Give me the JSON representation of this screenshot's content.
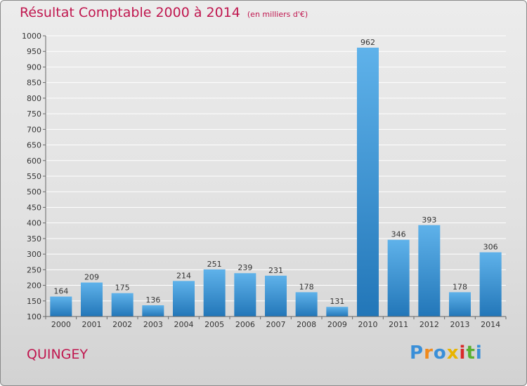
{
  "header": {
    "title": "Résultat Comptable 2000 à 2014",
    "unit_note": "(en milliers d'€)"
  },
  "location": "QUINGEY",
  "logo": {
    "text": "Proxiti",
    "letter_colors": [
      "#3a8fd8",
      "#f08a1c",
      "#3a8fd8",
      "#e8b400",
      "#d92a2a",
      "#59b031",
      "#3a8fd8"
    ]
  },
  "colors": {
    "title": "#c0174f",
    "bar_light": "#5fb2ea",
    "bar_dark": "#2276b8",
    "grid": "#ffffff"
  },
  "chart_data": {
    "type": "bar",
    "categories": [
      "2000",
      "2001",
      "2002",
      "2003",
      "2004",
      "2005",
      "2006",
      "2007",
      "2008",
      "2009",
      "2010",
      "2011",
      "2012",
      "2013",
      "2014"
    ],
    "values": [
      164,
      209,
      175,
      136,
      214,
      251,
      239,
      231,
      178,
      131,
      962,
      346,
      393,
      178,
      306
    ],
    "ylim": [
      100,
      1000
    ],
    "ytick_step": 50,
    "grid": true,
    "data_labels": true
  }
}
